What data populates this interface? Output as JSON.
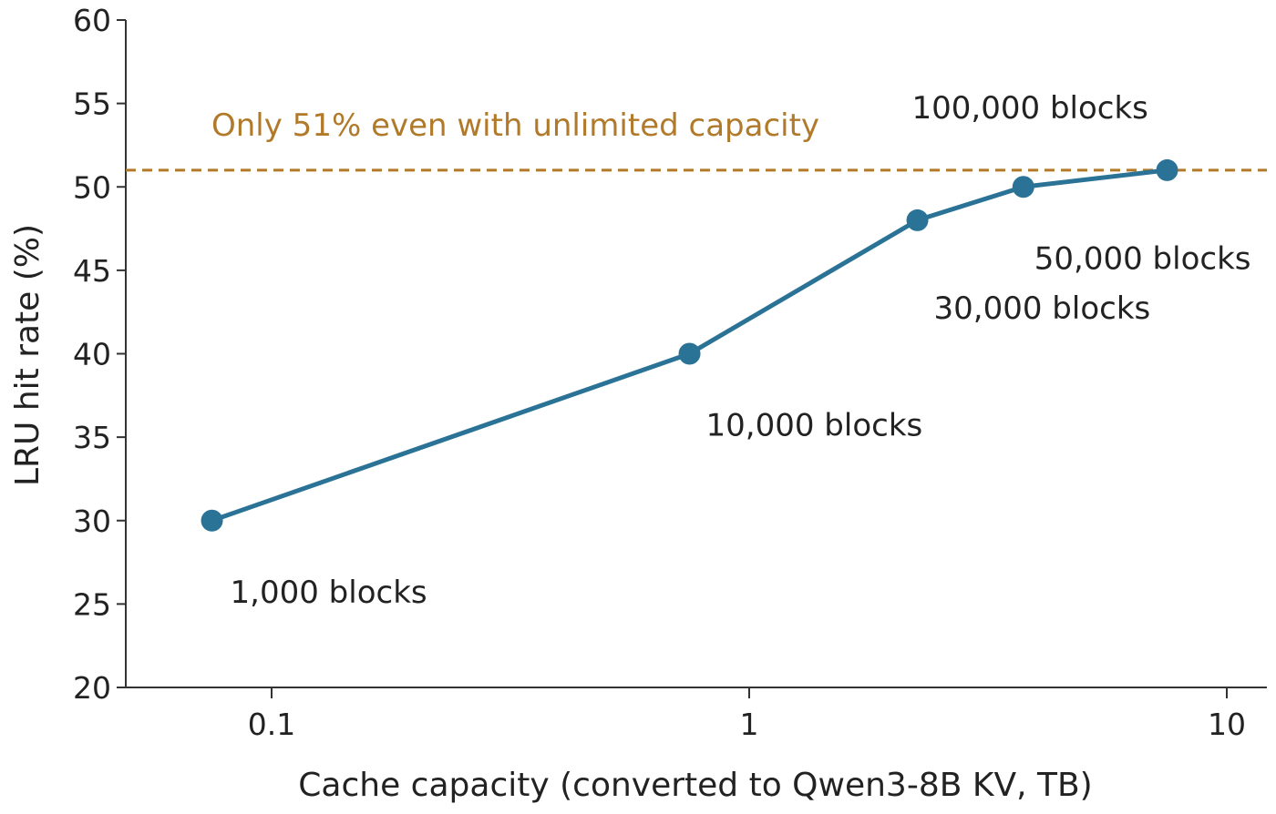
{
  "colors": {
    "series": "#2b7396",
    "reference": "#b07a2a",
    "axis": "#333333",
    "text": "#222222"
  },
  "chart_data": {
    "type": "line",
    "xlabel": "Cache capacity (converted to Qwen3-8B KV, TB)",
    "ylabel": "LRU hit rate (%)",
    "xscale": "log",
    "xlim": [
      0.05,
      12
    ],
    "ylim": [
      20,
      60
    ],
    "xticks": [
      0.1,
      1,
      10
    ],
    "xtick_labels": [
      "0.1",
      "1",
      "10"
    ],
    "yticks": [
      20,
      25,
      30,
      35,
      40,
      45,
      50,
      55,
      60
    ],
    "ytick_labels": [
      "20",
      "25",
      "30",
      "35",
      "40",
      "45",
      "50",
      "55",
      "60"
    ],
    "grid": false,
    "series": [
      {
        "x": [
          0.075,
          0.75,
          2.25,
          3.75,
          7.5
        ],
        "y": [
          30,
          40,
          48,
          50,
          51
        ],
        "labels": [
          "1,000 blocks",
          "10,000 blocks",
          "30,000 blocks",
          "50,000 blocks",
          "100,000 blocks"
        ]
      }
    ],
    "reference_line": {
      "y": 51,
      "label": "Only 51% even with unlimited capacity"
    }
  }
}
